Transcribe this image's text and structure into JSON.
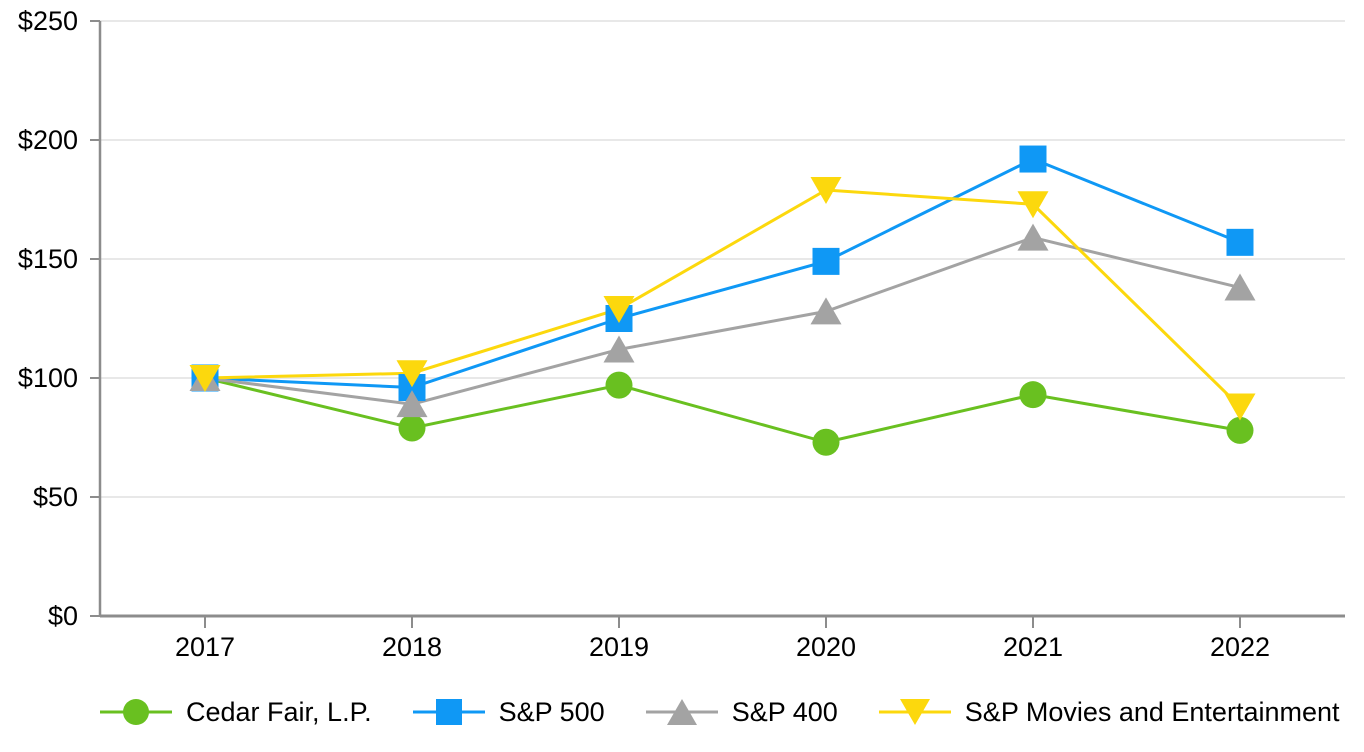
{
  "chart_data": {
    "type": "line",
    "title": "",
    "xlabel": "",
    "ylabel": "",
    "categories": [
      "2017",
      "2018",
      "2019",
      "2020",
      "2021",
      "2022"
    ],
    "series": [
      {
        "name": "Cedar Fair, L.P.",
        "key": "cedar-fair",
        "marker": "circle",
        "color": "#69C020",
        "values": [
          100,
          79,
          97,
          73,
          93,
          78
        ]
      },
      {
        "name": "S&P 500",
        "key": "sp500",
        "marker": "square",
        "color": "#0F98F5",
        "values": [
          100,
          96,
          125,
          149,
          192,
          157
        ]
      },
      {
        "name": "S&P 400",
        "key": "sp400",
        "marker": "triangle-up",
        "color": "#A3A3A3",
        "values": [
          100,
          89,
          112,
          128,
          159,
          138
        ]
      },
      {
        "name": "S&P Movies and Entertainment",
        "key": "sp-movies",
        "marker": "triangle-down",
        "color": "#FCD80D",
        "values": [
          100,
          102,
          129,
          179,
          173,
          88
        ]
      }
    ],
    "ylim": [
      0,
      250
    ],
    "ytick_step": 50,
    "ytick_labels": [
      "$0",
      "$50",
      "$100",
      "$150",
      "$200",
      "$250"
    ],
    "grid": true,
    "legend_position": "bottom",
    "axis_color": "#8C8C8C",
    "grid_color": "#E8E8E8",
    "tick_label_color": "#000000"
  }
}
